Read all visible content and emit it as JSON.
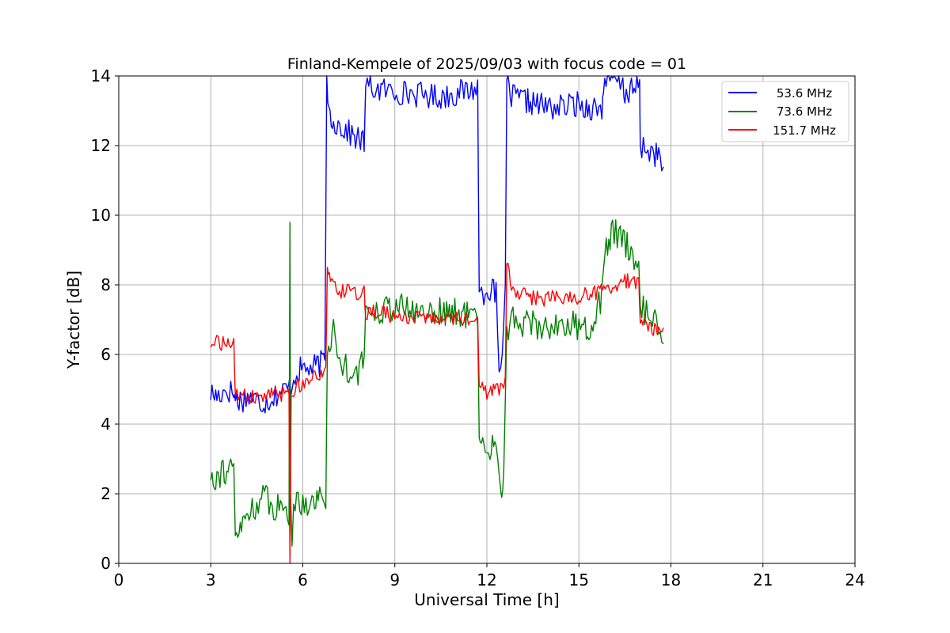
{
  "chart_data": {
    "type": "line",
    "title": "Finland-Kempele of 2025/09/03 with focus code = 01",
    "xlabel": "Universal Time [h]",
    "ylabel": "Y-factor [dB]",
    "xlim": [
      0,
      24
    ],
    "ylim": [
      0,
      14
    ],
    "x_ticks": [
      0,
      3,
      6,
      9,
      12,
      15,
      18,
      21,
      24
    ],
    "y_ticks": [
      0,
      2,
      4,
      6,
      8,
      10,
      12,
      14
    ],
    "grid": true,
    "legend_position": "top-right",
    "series": [
      {
        "name": "53.6 MHz",
        "color": "#0000ff",
        "points": [
          [
            3.0,
            4.9
          ],
          [
            3.2,
            4.8
          ],
          [
            3.5,
            5.0
          ],
          [
            3.75,
            4.9
          ],
          [
            3.8,
            4.7
          ],
          [
            4.0,
            4.7
          ],
          [
            4.3,
            4.8
          ],
          [
            4.6,
            4.6
          ],
          [
            4.9,
            4.7
          ],
          [
            5.2,
            4.9
          ],
          [
            5.5,
            5.0
          ],
          [
            5.65,
            5.2
          ],
          [
            5.8,
            5.5
          ],
          [
            6.0,
            5.6
          ],
          [
            6.3,
            5.6
          ],
          [
            6.5,
            5.7
          ],
          [
            6.72,
            5.8
          ],
          [
            6.78,
            14.0
          ],
          [
            6.85,
            13.0
          ],
          [
            7.0,
            12.7
          ],
          [
            7.3,
            12.5
          ],
          [
            7.6,
            12.3
          ],
          [
            7.8,
            12.2
          ],
          [
            8.0,
            12.1
          ],
          [
            8.05,
            13.7
          ],
          [
            8.5,
            13.6
          ],
          [
            9.0,
            13.55
          ],
          [
            9.5,
            13.5
          ],
          [
            10.0,
            13.45
          ],
          [
            10.5,
            13.4
          ],
          [
            11.0,
            13.5
          ],
          [
            11.5,
            13.6
          ],
          [
            11.7,
            13.7
          ],
          [
            11.75,
            7.8
          ],
          [
            11.9,
            7.8
          ],
          [
            12.1,
            7.9
          ],
          [
            12.3,
            7.7
          ],
          [
            12.4,
            5.5
          ],
          [
            12.5,
            5.8
          ],
          [
            12.6,
            8.0
          ],
          [
            12.65,
            13.9
          ],
          [
            12.8,
            13.4
          ],
          [
            13.2,
            13.3
          ],
          [
            13.6,
            13.2
          ],
          [
            14.0,
            13.1
          ],
          [
            14.5,
            13.1
          ],
          [
            14.9,
            13.2
          ],
          [
            15.2,
            13.1
          ],
          [
            15.5,
            13.1
          ],
          [
            15.75,
            13.0
          ],
          [
            15.8,
            13.8
          ],
          [
            16.1,
            13.9
          ],
          [
            16.4,
            13.8
          ],
          [
            16.5,
            13.5
          ],
          [
            16.8,
            13.6
          ],
          [
            16.98,
            13.7
          ],
          [
            17.0,
            12.0
          ],
          [
            17.2,
            11.9
          ],
          [
            17.4,
            11.8
          ],
          [
            17.6,
            11.7
          ],
          [
            17.75,
            11.3
          ]
        ]
      },
      {
        "name": "73.6 MHz",
        "color": "#008000",
        "points": [
          [
            3.0,
            2.6
          ],
          [
            3.2,
            2.5
          ],
          [
            3.4,
            2.7
          ],
          [
            3.6,
            2.6
          ],
          [
            3.75,
            2.7
          ],
          [
            3.8,
            0.8
          ],
          [
            4.0,
            1.0
          ],
          [
            4.2,
            1.5
          ],
          [
            4.5,
            1.7
          ],
          [
            4.8,
            1.9
          ],
          [
            5.1,
            1.6
          ],
          [
            5.4,
            1.6
          ],
          [
            5.55,
            1.5
          ],
          [
            5.58,
            9.8
          ],
          [
            5.6,
            2.0
          ],
          [
            5.65,
            0.5
          ],
          [
            5.7,
            1.7
          ],
          [
            6.0,
            1.8
          ],
          [
            6.3,
            1.8
          ],
          [
            6.5,
            1.9
          ],
          [
            6.75,
            1.9
          ],
          [
            6.8,
            6.0
          ],
          [
            7.0,
            6.7
          ],
          [
            7.2,
            5.8
          ],
          [
            7.5,
            5.6
          ],
          [
            7.8,
            5.5
          ],
          [
            8.0,
            5.8
          ],
          [
            8.05,
            7.4
          ],
          [
            8.3,
            7.3
          ],
          [
            8.6,
            7.3
          ],
          [
            9.0,
            7.4
          ],
          [
            9.4,
            7.3
          ],
          [
            9.8,
            7.2
          ],
          [
            10.2,
            7.3
          ],
          [
            10.6,
            7.2
          ],
          [
            11.0,
            7.2
          ],
          [
            11.4,
            7.1
          ],
          [
            11.7,
            7.2
          ],
          [
            11.75,
            3.6
          ],
          [
            11.9,
            3.2
          ],
          [
            12.1,
            3.3
          ],
          [
            12.3,
            3.5
          ],
          [
            12.45,
            2.1
          ],
          [
            12.55,
            2.5
          ],
          [
            12.65,
            6.8
          ],
          [
            12.9,
            7.0
          ],
          [
            13.3,
            6.9
          ],
          [
            13.7,
            6.8
          ],
          [
            14.0,
            6.8
          ],
          [
            14.5,
            6.9
          ],
          [
            14.9,
            6.8
          ],
          [
            15.2,
            6.7
          ],
          [
            15.5,
            7.0
          ],
          [
            15.7,
            7.5
          ],
          [
            15.85,
            8.9
          ],
          [
            16.1,
            9.6
          ],
          [
            16.4,
            9.3
          ],
          [
            16.7,
            9.0
          ],
          [
            16.95,
            8.6
          ],
          [
            17.0,
            7.4
          ],
          [
            17.2,
            7.2
          ],
          [
            17.4,
            7.0
          ],
          [
            17.6,
            6.8
          ],
          [
            17.75,
            6.6
          ]
        ]
      },
      {
        "name": "151.7 MHz",
        "color": "#ff0000",
        "points": [
          [
            3.0,
            6.3
          ],
          [
            3.2,
            6.4
          ],
          [
            3.4,
            6.3
          ],
          [
            3.6,
            6.4
          ],
          [
            3.75,
            6.3
          ],
          [
            3.8,
            4.8
          ],
          [
            4.1,
            4.8
          ],
          [
            4.4,
            4.75
          ],
          [
            4.8,
            4.8
          ],
          [
            5.2,
            4.85
          ],
          [
            5.5,
            4.9
          ],
          [
            5.55,
            4.9
          ],
          [
            5.58,
            0.0
          ],
          [
            5.62,
            4.8
          ],
          [
            5.7,
            5.0
          ],
          [
            6.0,
            5.2
          ],
          [
            6.3,
            5.3
          ],
          [
            6.6,
            5.4
          ],
          [
            6.75,
            5.5
          ],
          [
            6.8,
            8.5
          ],
          [
            6.9,
            8.0
          ],
          [
            7.2,
            7.8
          ],
          [
            7.5,
            7.8
          ],
          [
            7.8,
            7.7
          ],
          [
            8.0,
            7.8
          ],
          [
            8.05,
            7.2
          ],
          [
            8.5,
            7.2
          ],
          [
            9.0,
            7.1
          ],
          [
            9.5,
            7.05
          ],
          [
            10.0,
            7.0
          ],
          [
            10.5,
            7.0
          ],
          [
            11.0,
            7.0
          ],
          [
            11.5,
            7.0
          ],
          [
            11.7,
            7.0
          ],
          [
            11.75,
            5.1
          ],
          [
            12.0,
            4.9
          ],
          [
            12.3,
            5.0
          ],
          [
            12.5,
            5.1
          ],
          [
            12.6,
            5.3
          ],
          [
            12.65,
            8.6
          ],
          [
            12.8,
            7.9
          ],
          [
            13.2,
            7.7
          ],
          [
            13.6,
            7.6
          ],
          [
            14.0,
            7.6
          ],
          [
            14.4,
            7.7
          ],
          [
            14.8,
            7.6
          ],
          [
            15.2,
            7.7
          ],
          [
            15.6,
            7.8
          ],
          [
            15.9,
            7.9
          ],
          [
            16.2,
            8.0
          ],
          [
            16.5,
            8.1
          ],
          [
            16.8,
            8.1
          ],
          [
            16.95,
            8.1
          ],
          [
            17.0,
            6.9
          ],
          [
            17.3,
            6.8
          ],
          [
            17.6,
            6.7
          ],
          [
            17.75,
            6.7
          ]
        ]
      }
    ]
  }
}
